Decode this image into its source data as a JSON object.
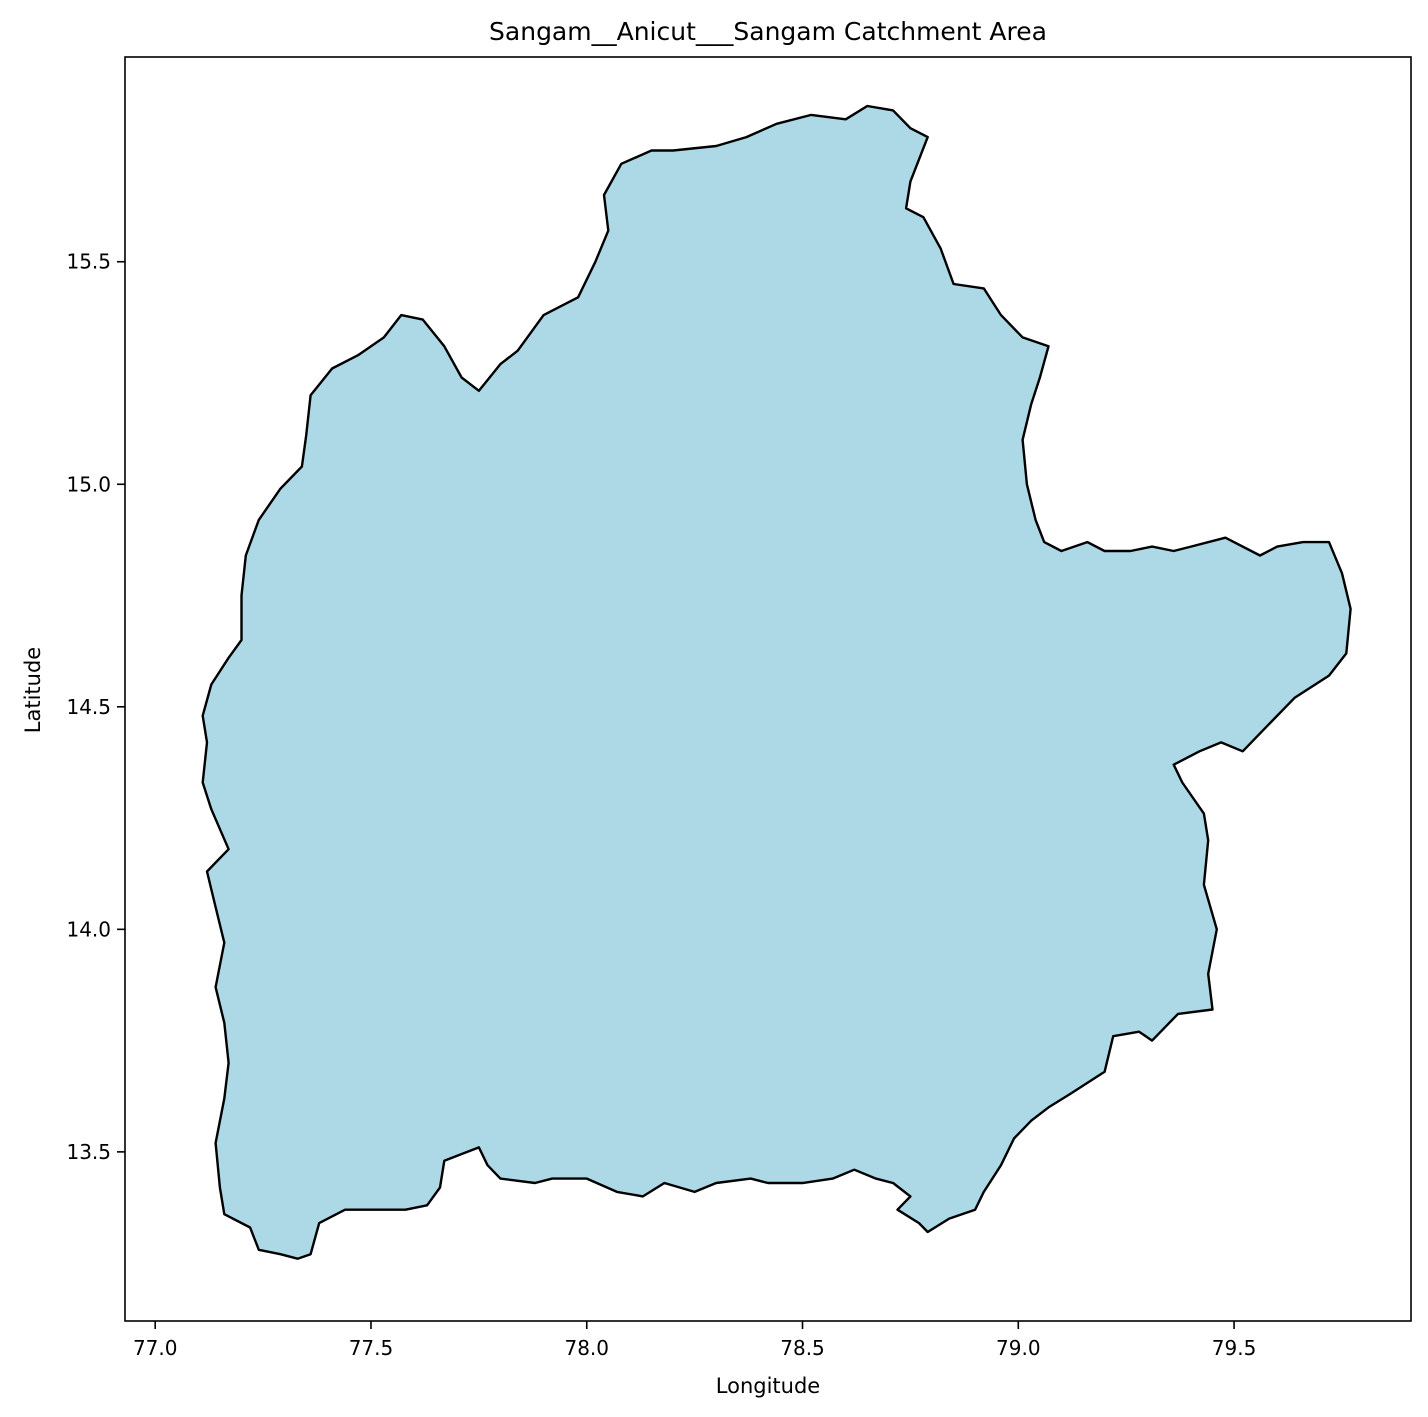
{
  "chart_data": {
    "type": "map",
    "title": "Sangam__Anicut___Sangam Catchment Area",
    "xlabel": "Longitude",
    "ylabel": "Latitude",
    "xlim": [
      76.93,
      79.91
    ],
    "ylim": [
      13.12,
      15.96
    ],
    "x_ticks": [
      {
        "value": 77.0,
        "label": "77.0"
      },
      {
        "value": 77.5,
        "label": "77.5"
      },
      {
        "value": 78.0,
        "label": "78.0"
      },
      {
        "value": 78.5,
        "label": "78.5"
      },
      {
        "value": 79.0,
        "label": "79.0"
      },
      {
        "value": 79.5,
        "label": "79.5"
      }
    ],
    "y_ticks": [
      {
        "value": 13.5,
        "label": "13.5"
      },
      {
        "value": 14.0,
        "label": "14.0"
      },
      {
        "value": 14.5,
        "label": "14.5"
      },
      {
        "value": 15.0,
        "label": "15.0"
      },
      {
        "value": 15.5,
        "label": "15.5"
      }
    ],
    "grid": false,
    "polygon": {
      "fill": "#add8e6",
      "stroke": "#000000",
      "lonlat": [
        [
          77.33,
          13.26
        ],
        [
          77.36,
          13.27
        ],
        [
          77.38,
          13.34
        ],
        [
          77.44,
          13.37
        ],
        [
          77.53,
          13.37
        ],
        [
          77.58,
          13.37
        ],
        [
          77.63,
          13.38
        ],
        [
          77.66,
          13.42
        ],
        [
          77.67,
          13.48
        ],
        [
          77.75,
          13.51
        ],
        [
          77.77,
          13.47
        ],
        [
          77.8,
          13.44
        ],
        [
          77.88,
          13.43
        ],
        [
          77.92,
          13.44
        ],
        [
          78.0,
          13.44
        ],
        [
          78.07,
          13.41
        ],
        [
          78.13,
          13.4
        ],
        [
          78.18,
          13.43
        ],
        [
          78.25,
          13.41
        ],
        [
          78.3,
          13.43
        ],
        [
          78.38,
          13.44
        ],
        [
          78.42,
          13.43
        ],
        [
          78.5,
          13.43
        ],
        [
          78.57,
          13.44
        ],
        [
          78.62,
          13.46
        ],
        [
          78.67,
          13.44
        ],
        [
          78.71,
          13.43
        ],
        [
          78.75,
          13.4
        ],
        [
          78.72,
          13.37
        ],
        [
          78.77,
          13.34
        ],
        [
          78.79,
          13.32
        ],
        [
          78.84,
          13.35
        ],
        [
          78.9,
          13.37
        ],
        [
          78.92,
          13.41
        ],
        [
          78.96,
          13.47
        ],
        [
          78.99,
          13.53
        ],
        [
          79.03,
          13.57
        ],
        [
          79.07,
          13.6
        ],
        [
          79.12,
          13.63
        ],
        [
          79.2,
          13.68
        ],
        [
          79.22,
          13.76
        ],
        [
          79.28,
          13.77
        ],
        [
          79.31,
          13.75
        ],
        [
          79.37,
          13.81
        ],
        [
          79.45,
          13.82
        ],
        [
          79.44,
          13.9
        ],
        [
          79.46,
          14.0
        ],
        [
          79.43,
          14.1
        ],
        [
          79.44,
          14.2
        ],
        [
          79.43,
          14.26
        ],
        [
          79.38,
          14.33
        ],
        [
          79.36,
          14.37
        ],
        [
          79.42,
          14.4
        ],
        [
          79.47,
          14.42
        ],
        [
          79.52,
          14.4
        ],
        [
          79.58,
          14.46
        ],
        [
          79.64,
          14.52
        ],
        [
          79.72,
          14.57
        ],
        [
          79.76,
          14.62
        ],
        [
          79.77,
          14.72
        ],
        [
          79.75,
          14.8
        ],
        [
          79.72,
          14.87
        ],
        [
          79.66,
          14.87
        ],
        [
          79.6,
          14.86
        ],
        [
          79.56,
          14.84
        ],
        [
          79.48,
          14.88
        ],
        [
          79.4,
          14.86
        ],
        [
          79.36,
          14.85
        ],
        [
          79.31,
          14.86
        ],
        [
          79.26,
          14.85
        ],
        [
          79.2,
          14.85
        ],
        [
          79.16,
          14.87
        ],
        [
          79.1,
          14.85
        ],
        [
          79.06,
          14.87
        ],
        [
          79.04,
          14.92
        ],
        [
          79.02,
          15.0
        ],
        [
          79.01,
          15.1
        ],
        [
          79.03,
          15.18
        ],
        [
          79.05,
          15.24
        ],
        [
          79.07,
          15.31
        ],
        [
          79.01,
          15.33
        ],
        [
          78.96,
          15.38
        ],
        [
          78.92,
          15.44
        ],
        [
          78.85,
          15.45
        ],
        [
          78.82,
          15.53
        ],
        [
          78.78,
          15.6
        ],
        [
          78.74,
          15.62
        ],
        [
          78.75,
          15.68
        ],
        [
          78.79,
          15.78
        ],
        [
          78.75,
          15.8
        ],
        [
          78.71,
          15.84
        ],
        [
          78.65,
          15.85
        ],
        [
          78.6,
          15.82
        ],
        [
          78.52,
          15.83
        ],
        [
          78.44,
          15.81
        ],
        [
          78.37,
          15.78
        ],
        [
          78.3,
          15.76
        ],
        [
          78.2,
          15.75
        ],
        [
          78.15,
          15.75
        ],
        [
          78.08,
          15.72
        ],
        [
          78.04,
          15.65
        ],
        [
          78.05,
          15.57
        ],
        [
          78.02,
          15.5
        ],
        [
          77.98,
          15.42
        ],
        [
          77.9,
          15.38
        ],
        [
          77.84,
          15.3
        ],
        [
          77.8,
          15.27
        ],
        [
          77.75,
          15.21
        ],
        [
          77.71,
          15.24
        ],
        [
          77.67,
          15.31
        ],
        [
          77.62,
          15.37
        ],
        [
          77.57,
          15.38
        ],
        [
          77.53,
          15.33
        ],
        [
          77.47,
          15.29
        ],
        [
          77.41,
          15.26
        ],
        [
          77.36,
          15.2
        ],
        [
          77.35,
          15.11
        ],
        [
          77.34,
          15.04
        ],
        [
          77.29,
          14.99
        ],
        [
          77.24,
          14.92
        ],
        [
          77.21,
          14.84
        ],
        [
          77.2,
          14.75
        ],
        [
          77.2,
          14.65
        ],
        [
          77.17,
          14.61
        ],
        [
          77.13,
          14.55
        ],
        [
          77.11,
          14.48
        ],
        [
          77.12,
          14.42
        ],
        [
          77.11,
          14.33
        ],
        [
          77.13,
          14.27
        ],
        [
          77.17,
          14.18
        ],
        [
          77.12,
          14.13
        ],
        [
          77.14,
          14.05
        ],
        [
          77.16,
          13.97
        ],
        [
          77.14,
          13.87
        ],
        [
          77.16,
          13.79
        ],
        [
          77.17,
          13.7
        ],
        [
          77.16,
          13.62
        ],
        [
          77.14,
          13.52
        ],
        [
          77.15,
          13.42
        ],
        [
          77.16,
          13.36
        ],
        [
          77.22,
          13.33
        ],
        [
          77.24,
          13.28
        ],
        [
          77.29,
          13.27
        ],
        [
          77.33,
          13.26
        ]
      ]
    }
  }
}
